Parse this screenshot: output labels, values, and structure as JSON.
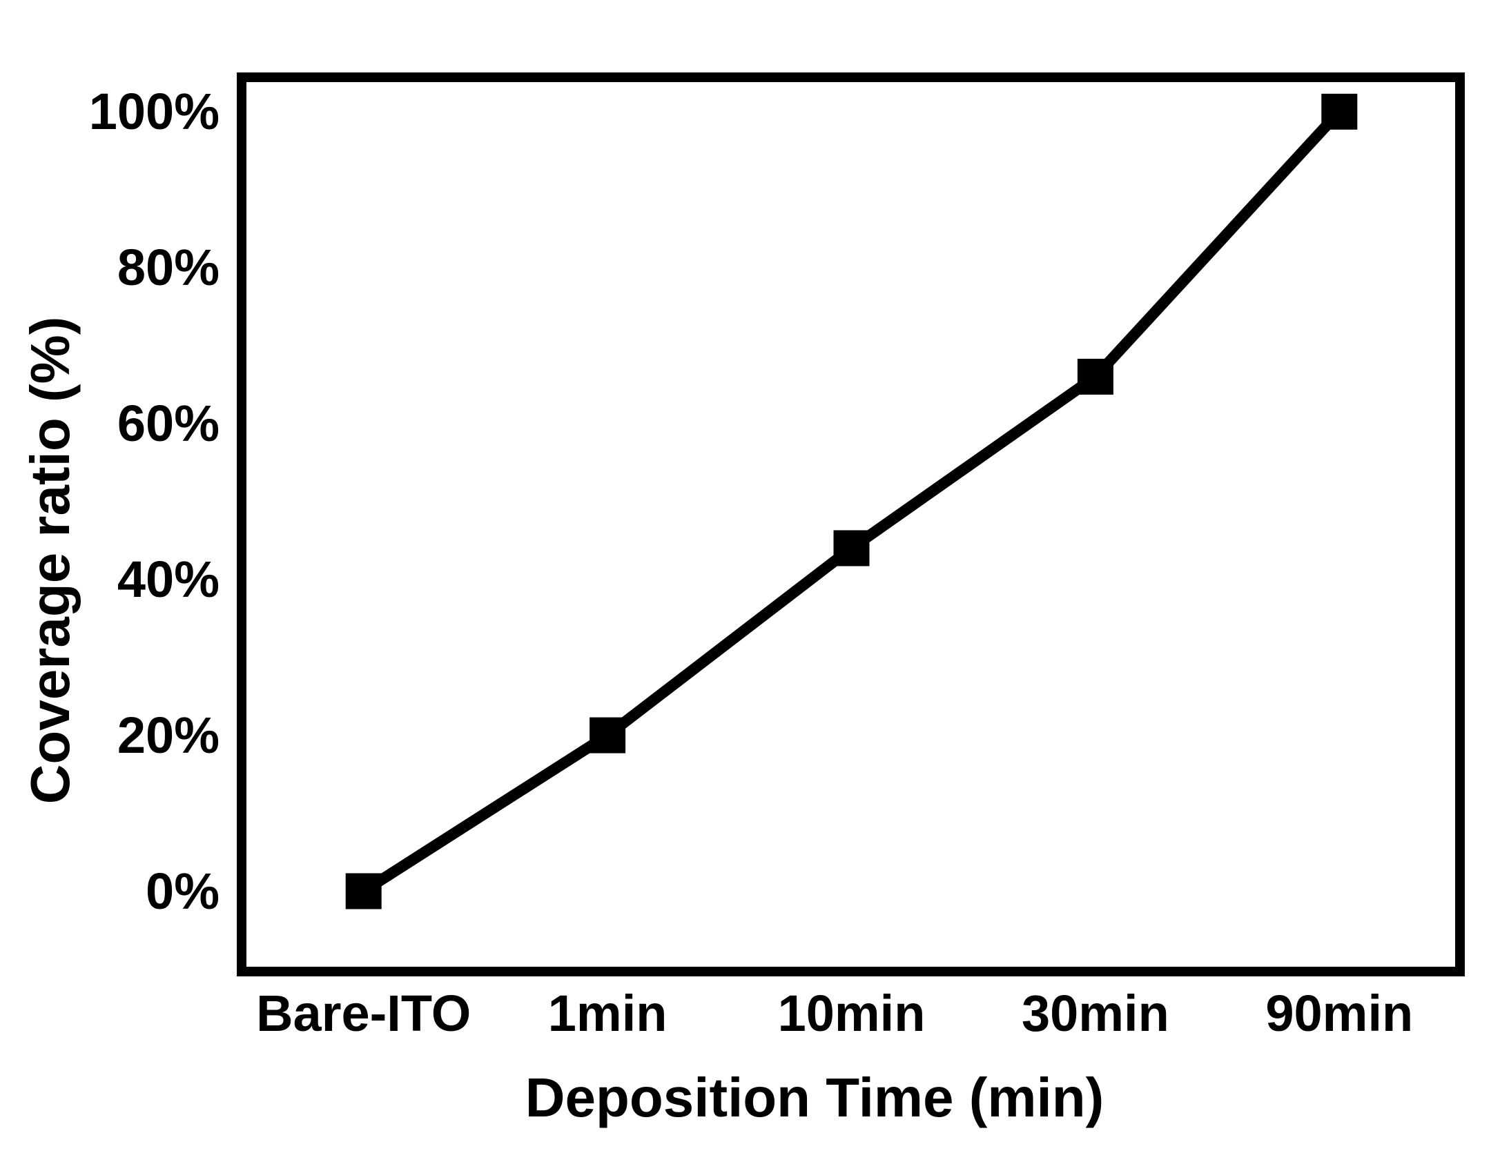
{
  "figure": {
    "background_color": "#ffffff",
    "ink_color": "#000000"
  },
  "chart_data": {
    "type": "line",
    "title": "",
    "xlabel": "Deposition Time (min)",
    "ylabel": "Coverage ratio (%)",
    "categories": [
      "Bare-ITO",
      "1min",
      "10min",
      "30min",
      "90min"
    ],
    "series": [
      {
        "name": "Coverage ratio",
        "values": [
          0,
          20,
          44,
          66,
          100
        ],
        "line_color": "#000000",
        "marker": "square",
        "marker_color": "#000000"
      }
    ],
    "ytick_labels": [
      "0%",
      "20%",
      "40%",
      "60%",
      "80%",
      "100%"
    ],
    "ytick_values": [
      0,
      20,
      40,
      60,
      80,
      100
    ],
    "ylim": [
      -10.4,
      104.5
    ],
    "grid": false,
    "legend_position": "none"
  }
}
